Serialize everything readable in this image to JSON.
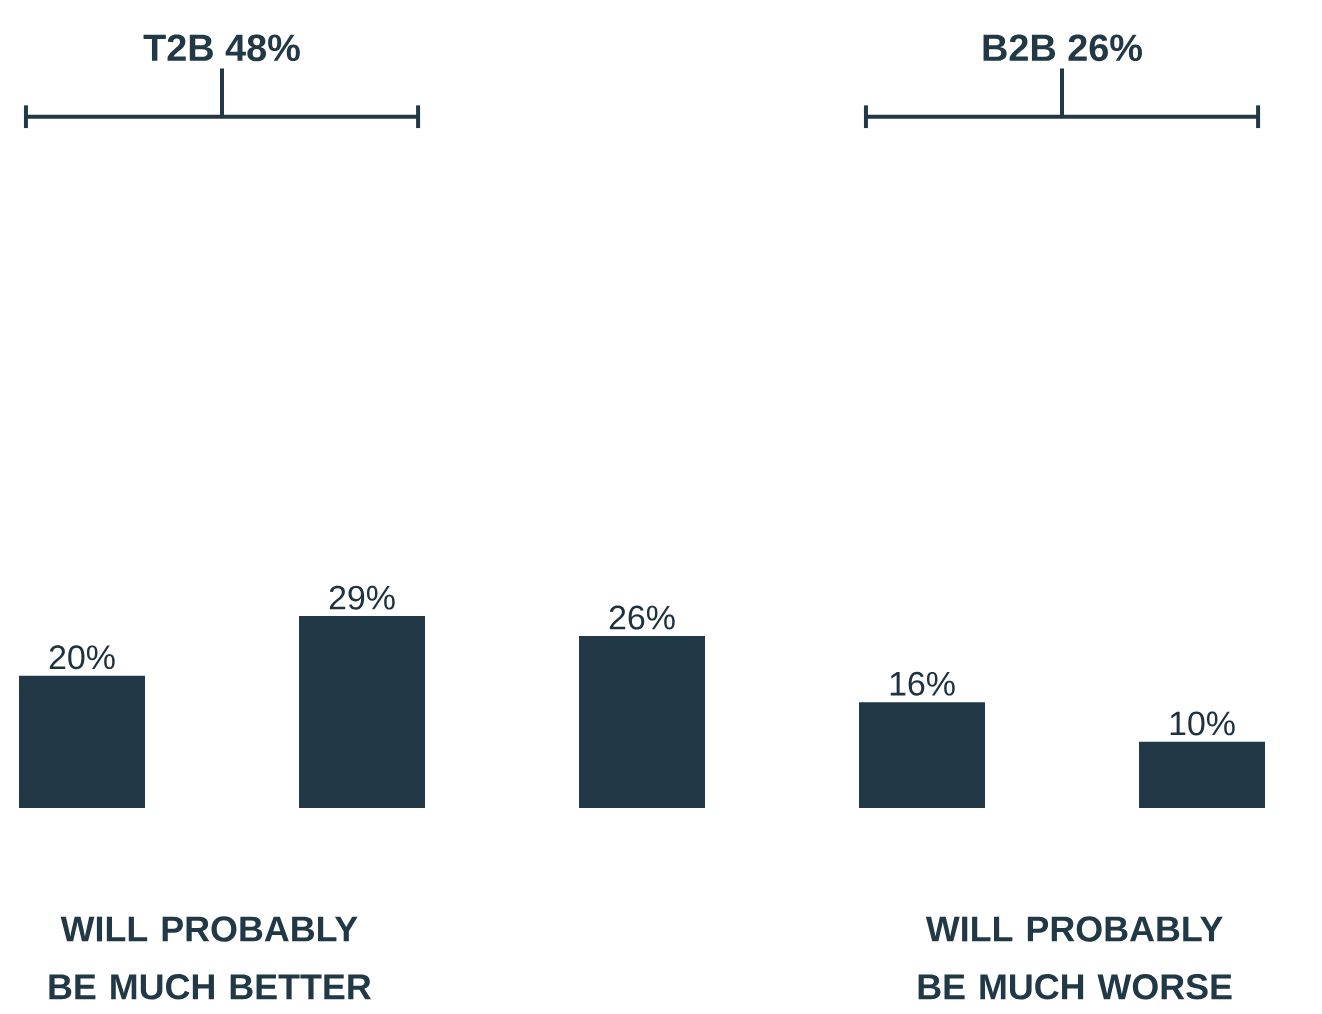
{
  "chart_data": {
    "type": "bar",
    "categories": [
      null,
      null,
      null,
      null,
      null
    ],
    "values": [
      20,
      29,
      26,
      16,
      10
    ],
    "value_labels": [
      "20%",
      "29%",
      "26%",
      "16%",
      "10%"
    ],
    "color": "#213846",
    "annotations": [
      "T2B 48%",
      "B2B 26%",
      "WILL PROBABLY BE MUCH BETTER",
      "WILL PROBABLY BE MUCH WORSE"
    ]
  }
}
